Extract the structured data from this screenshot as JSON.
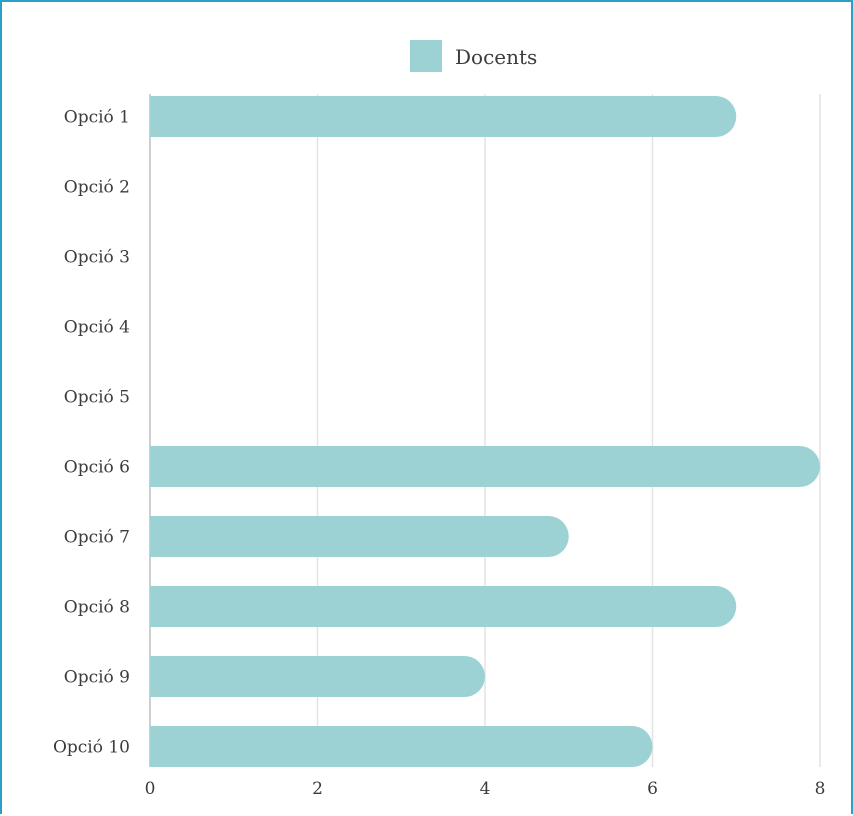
{
  "chart_data": {
    "type": "bar",
    "orientation": "horizontal",
    "categories": [
      "Opció 1",
      "Opció 2",
      "Opció 3",
      "Opció 4",
      "Opció 5",
      "Opció 6",
      "Opció 7",
      "Opció 8",
      "Opció 9",
      "Opció 10"
    ],
    "series": [
      {
        "name": "Docents",
        "values": [
          7,
          0,
          0,
          0,
          0,
          8,
          5,
          7,
          4,
          6
        ],
        "color": "#9dd2d4"
      }
    ],
    "x_ticks": [
      "0",
      "2",
      "4",
      "6",
      "8"
    ],
    "xlim": [
      0,
      8
    ],
    "grid": true,
    "legend_position": "top-center"
  }
}
